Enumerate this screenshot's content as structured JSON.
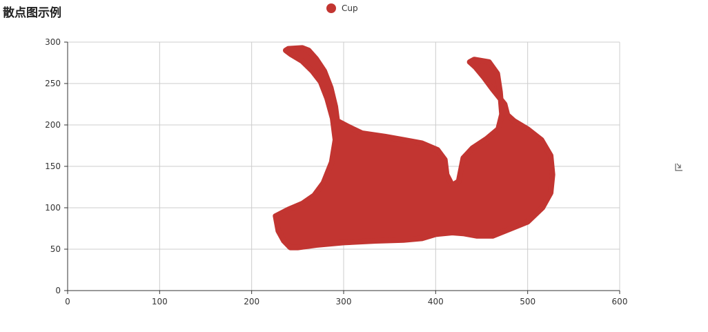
{
  "title": "散点图示例",
  "legend": {
    "label": "Cup",
    "color": "#c23531"
  },
  "toolbox": {
    "icon": "save-as-image-icon"
  },
  "chart_data": {
    "type": "scatter",
    "title": "散点图示例",
    "xlabel": "",
    "ylabel": "",
    "xlim": [
      0,
      600
    ],
    "ylim": [
      0,
      300
    ],
    "x_ticks": [
      "0",
      "100",
      "200",
      "300",
      "400",
      "500",
      "600"
    ],
    "y_ticks": [
      "0",
      "50",
      "100",
      "150",
      "200",
      "250",
      "300"
    ],
    "grid": true,
    "legend_position": "top-center",
    "series": [
      {
        "name": "Cup",
        "color": "#c23531",
        "outline": [
          [
            240,
            292
          ],
          [
            255,
            293
          ],
          [
            262,
            290
          ],
          [
            270,
            280
          ],
          [
            279,
            265
          ],
          [
            286,
            245
          ],
          [
            291,
            222
          ],
          [
            293,
            205
          ],
          [
            305,
            198
          ],
          [
            320,
            190
          ],
          [
            345,
            186
          ],
          [
            365,
            182
          ],
          [
            385,
            178
          ],
          [
            402,
            170
          ],
          [
            410,
            158
          ],
          [
            412,
            140
          ],
          [
            418,
            127
          ],
          [
            425,
            132
          ],
          [
            430,
            160
          ],
          [
            440,
            172
          ],
          [
            455,
            183
          ],
          [
            468,
            195
          ],
          [
            472,
            213
          ],
          [
            470,
            240
          ],
          [
            467,
            262
          ],
          [
            458,
            276
          ],
          [
            442,
            279
          ],
          [
            437,
            276
          ],
          [
            443,
            270
          ],
          [
            452,
            258
          ],
          [
            462,
            243
          ],
          [
            475,
            225
          ],
          [
            478,
            212
          ],
          [
            485,
            205
          ],
          [
            500,
            195
          ],
          [
            515,
            182
          ],
          [
            525,
            163
          ],
          [
            527,
            140
          ],
          [
            525,
            118
          ],
          [
            516,
            100
          ],
          [
            500,
            83
          ],
          [
            480,
            74
          ],
          [
            462,
            66
          ],
          [
            445,
            66
          ],
          [
            430,
            69
          ],
          [
            418,
            70
          ],
          [
            400,
            68
          ],
          [
            385,
            63
          ],
          [
            365,
            61
          ],
          [
            335,
            60
          ],
          [
            300,
            58
          ],
          [
            270,
            55
          ],
          [
            250,
            52
          ],
          [
            242,
            52
          ],
          [
            235,
            60
          ],
          [
            229,
            72
          ],
          [
            226,
            90
          ],
          [
            240,
            98
          ],
          [
            255,
            105
          ],
          [
            268,
            115
          ],
          [
            278,
            130
          ],
          [
            287,
            155
          ],
          [
            291,
            182
          ],
          [
            288,
            208
          ],
          [
            282,
            232
          ],
          [
            275,
            252
          ],
          [
            266,
            265
          ],
          [
            255,
            277
          ],
          [
            243,
            285
          ],
          [
            237,
            290
          ]
        ]
      }
    ]
  }
}
